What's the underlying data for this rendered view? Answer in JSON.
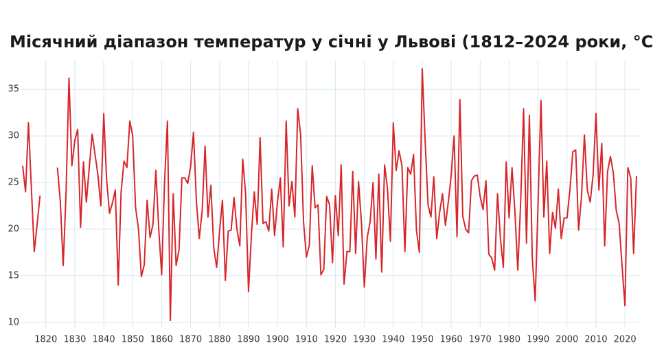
{
  "chart_data": {
    "type": "line",
    "title": "Місячний діапазон температур у січні у Львові (1812–2024 роки, °C)",
    "x": [
      1812,
      1813,
      1814,
      1815,
      1816,
      1817,
      1818,
      1819,
      1820,
      1821,
      1822,
      1823,
      1824,
      1825,
      1826,
      1827,
      1828,
      1829,
      1830,
      1831,
      1832,
      1833,
      1834,
      1835,
      1836,
      1837,
      1838,
      1839,
      1840,
      1841,
      1842,
      1843,
      1844,
      1845,
      1846,
      1847,
      1848,
      1849,
      1850,
      1851,
      1852,
      1853,
      1854,
      1855,
      1856,
      1857,
      1858,
      1859,
      1860,
      1861,
      1862,
      1863,
      1864,
      1865,
      1866,
      1867,
      1868,
      1869,
      1870,
      1871,
      1872,
      1873,
      1874,
      1875,
      1876,
      1877,
      1878,
      1879,
      1880,
      1881,
      1882,
      1883,
      1884,
      1885,
      1886,
      1887,
      1888,
      1889,
      1890,
      1891,
      1892,
      1893,
      1894,
      1895,
      1896,
      1897,
      1898,
      1899,
      1900,
      1901,
      1902,
      1903,
      1904,
      1905,
      1906,
      1907,
      1908,
      1909,
      1910,
      1911,
      1912,
      1913,
      1914,
      1915,
      1916,
      1917,
      1918,
      1919,
      1920,
      1921,
      1922,
      1923,
      1924,
      1925,
      1926,
      1927,
      1928,
      1929,
      1930,
      1931,
      1932,
      1933,
      1934,
      1935,
      1936,
      1937,
      1938,
      1939,
      1940,
      1941,
      1942,
      1943,
      1944,
      1945,
      1946,
      1947,
      1948,
      1949,
      1950,
      1951,
      1952,
      1953,
      1954,
      1955,
      1956,
      1957,
      1958,
      1959,
      1960,
      1961,
      1962,
      1963,
      1964,
      1965,
      1966,
      1967,
      1968,
      1969,
      1970,
      1971,
      1972,
      1973,
      1974,
      1975,
      1976,
      1977,
      1978,
      1979,
      1980,
      1981,
      1982,
      1983,
      1984,
      1985,
      1986,
      1987,
      1988,
      1989,
      1990,
      1991,
      1992,
      1993,
      1994,
      1995,
      1996,
      1997,
      1998,
      1999,
      2000,
      2001,
      2002,
      2003,
      2004,
      2005,
      2006,
      2007,
      2008,
      2009,
      2010,
      2011,
      2012,
      2013,
      2014,
      2015,
      2016,
      2017,
      2018,
      2019,
      2020,
      2021,
      2022,
      2023,
      2024
    ],
    "series": [
      {
        "color": "#d7262b",
        "values": [
          26.8,
          24,
          31.4,
          24.5,
          17.6,
          20.5,
          23.6,
          null,
          null,
          null,
          null,
          null,
          26.6,
          23,
          16.1,
          24,
          36.2,
          26.8,
          29.5,
          30.7,
          20.2,
          27.2,
          22.9,
          26.6,
          30.2,
          28,
          25.8,
          22.5,
          32.4,
          25.3,
          21.7,
          22.8,
          24.2,
          14,
          24,
          27.3,
          26.6,
          31.6,
          30,
          22.3,
          20,
          14.9,
          16.2,
          23.1,
          19.1,
          20.5,
          26.3,
          20,
          15.1,
          25,
          31.6,
          10.2,
          23.8,
          16.1,
          17.8,
          25.5,
          25.5,
          24.9,
          26.7,
          30.4,
          23,
          19,
          22,
          28.9,
          21.3,
          24.7,
          18,
          15.9,
          19.8,
          23.1,
          14.5,
          19.8,
          19.9,
          23.4,
          20,
          18.2,
          27.5,
          23.8,
          13.3,
          19.4,
          24,
          20.5,
          29.8,
          20.6,
          20.8,
          19.8,
          24.3,
          19.3,
          22.9,
          25.5,
          18.1,
          31.6,
          22.5,
          25.1,
          21.3,
          32.9,
          30.1,
          20.8,
          17,
          18.3,
          26.8,
          22.3,
          22.6,
          15.1,
          15.7,
          23.5,
          22.6,
          16.4,
          23.6,
          19.3,
          26.9,
          14.1,
          17.6,
          17.6,
          26.2,
          17.4,
          25.1,
          20.7,
          13.8,
          19.1,
          20.8,
          25,
          16.8,
          25.9,
          15.4,
          26.9,
          24.3,
          18.7,
          31.4,
          26.3,
          28.4,
          26.8,
          17.6,
          26.6,
          25.9,
          28,
          19.9,
          17.5,
          37.2,
          29.5,
          22.6,
          21.3,
          25.6,
          19,
          21.8,
          23.8,
          20.4,
          22.9,
          25.8,
          30,
          19.2,
          33.9,
          21.4,
          20,
          19.6,
          25.2,
          25.7,
          25.8,
          23.5,
          22.1,
          25.2,
          17.3,
          16.9,
          15.6,
          23.8,
          19,
          15.9,
          27.2,
          21.2,
          26.6,
          21.9,
          15.6,
          23,
          32.9,
          18.5,
          32.2,
          16.9,
          12.3,
          22.8,
          33.8,
          21.3,
          27.3,
          17.4,
          21.8,
          20.1,
          24.3,
          19,
          21.2,
          21.2,
          24.2,
          28.3,
          28.5,
          19.9,
          23.5,
          30.1,
          24.2,
          22.9,
          25.8,
          32.4,
          24.2,
          29.2,
          18.2,
          26.2,
          27.8,
          26,
          22,
          20.6,
          16.1,
          11.8,
          26.6,
          25.5,
          17.4,
          25.7
        ]
      }
    ],
    "xlim": [
      1812,
      2024
    ],
    "xticks": [
      1820,
      1830,
      1840,
      1850,
      1860,
      1870,
      1880,
      1890,
      1900,
      1910,
      1920,
      1930,
      1940,
      1950,
      1960,
      1970,
      1980,
      1990,
      2000,
      2010,
      2020
    ],
    "ylim": [
      9.4,
      38.1
    ],
    "yticks": [
      10,
      15,
      20,
      25,
      30,
      35
    ],
    "grid": true
  }
}
